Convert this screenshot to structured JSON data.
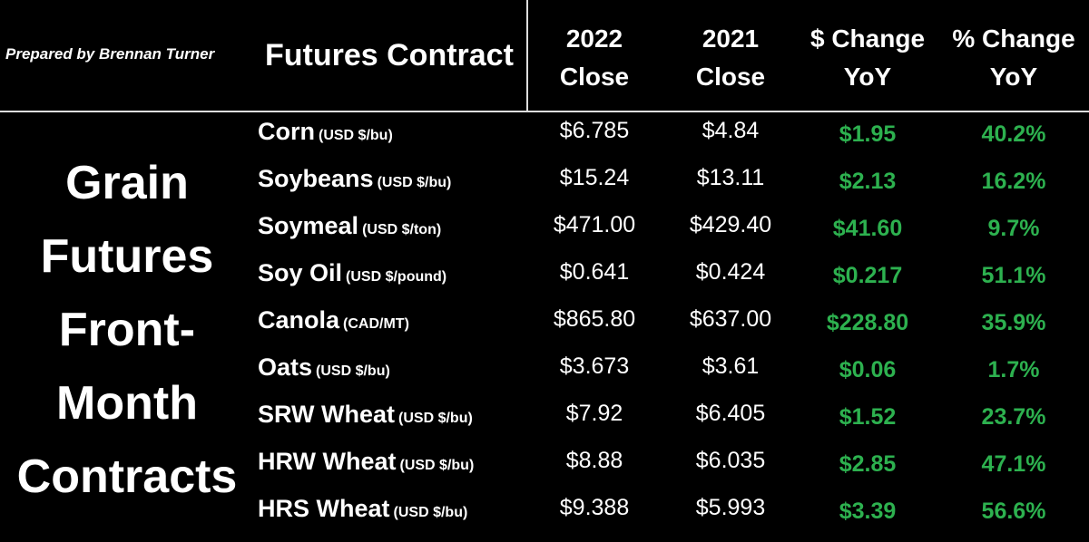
{
  "header": {
    "credit": "Prepared by Brennan Turner",
    "contract_label": "Futures Contract",
    "col_2022": [
      "2022",
      "Close"
    ],
    "col_2021": [
      "2021",
      "Close"
    ],
    "col_dollar_change": [
      "$ Change",
      "YoY"
    ],
    "col_pct_change": [
      "% Change",
      "YoY"
    ]
  },
  "side_title": [
    "Grain",
    "Futures",
    "Front-",
    "Month",
    "Contracts"
  ],
  "colors": {
    "background": "#000000",
    "text": "#ffffff",
    "positive_change": "#2db14f"
  },
  "rows": [
    {
      "name": "Corn",
      "unit": "(USD $/bu)",
      "close_2022": "$6.785",
      "close_2021": "$4.84",
      "dollar_change": "$1.95",
      "pct_change": "40.2%"
    },
    {
      "name": "Soybeans",
      "unit": "(USD $/bu)",
      "close_2022": "$15.24",
      "close_2021": "$13.11",
      "dollar_change": "$2.13",
      "pct_change": "16.2%"
    },
    {
      "name": "Soymeal",
      "unit": "(USD $/ton)",
      "close_2022": "$471.00",
      "close_2021": "$429.40",
      "dollar_change": "$41.60",
      "pct_change": "9.7%"
    },
    {
      "name": "Soy Oil",
      "unit": "(USD $/pound)",
      "close_2022": "$0.641",
      "close_2021": "$0.424",
      "dollar_change": "$0.217",
      "pct_change": "51.1%"
    },
    {
      "name": "Canola",
      "unit": "(CAD/MT)",
      "close_2022": "$865.80",
      "close_2021": "$637.00",
      "dollar_change": "$228.80",
      "pct_change": "35.9%"
    },
    {
      "name": "Oats",
      "unit": "(USD $/bu)",
      "close_2022": "$3.673",
      "close_2021": "$3.61",
      "dollar_change": "$0.06",
      "pct_change": "1.7%"
    },
    {
      "name": "SRW Wheat",
      "unit": "(USD $/bu)",
      "close_2022": "$7.92",
      "close_2021": "$6.405",
      "dollar_change": "$1.52",
      "pct_change": "23.7%"
    },
    {
      "name": "HRW Wheat",
      "unit": "(USD $/bu)",
      "close_2022": "$8.88",
      "close_2021": "$6.035",
      "dollar_change": "$2.85",
      "pct_change": "47.1%"
    },
    {
      "name": "HRS Wheat",
      "unit": "(USD $/bu)",
      "close_2022": "$9.388",
      "close_2021": "$5.993",
      "dollar_change": "$3.39",
      "pct_change": "56.6%"
    }
  ]
}
